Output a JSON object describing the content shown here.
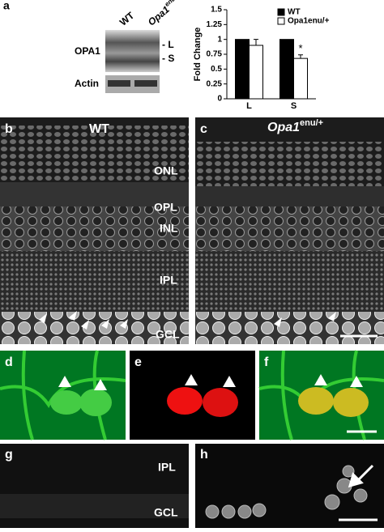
{
  "panels": {
    "a": "a",
    "b": "b",
    "c": "c",
    "d": "d",
    "e": "e",
    "f": "f",
    "g": "g",
    "h": "h"
  },
  "blot": {
    "wt": "WT",
    "mut": {
      "base": "Opa1",
      "sup": "enu/+"
    },
    "opa1": "OPA1",
    "actin": "Actin",
    "long": "- L",
    "short": "- S"
  },
  "retina": {
    "wt": "WT",
    "mut": {
      "base": "Opa1",
      "sup": "enu/+"
    },
    "layers": [
      "ONL",
      "OPL",
      "INL",
      "IPL",
      "GCL"
    ],
    "lower_layers": [
      "IPL",
      "GCL"
    ]
  },
  "chart_data": {
    "type": "bar",
    "ylabel": "Fold Change",
    "categories": [
      "L",
      "S"
    ],
    "series": [
      {
        "name": "WT",
        "color": "#000000",
        "values": [
          1,
          1
        ],
        "errors": [
          0,
          0
        ]
      },
      {
        "name": "Opa1enu/+",
        "color": "#ffffff",
        "values": [
          0.9,
          0.68
        ],
        "errors": [
          0.1,
          0.06
        ]
      }
    ],
    "ylim": [
      0,
      1.5
    ],
    "yticks": [
      0,
      0.25,
      0.5,
      0.75,
      1,
      1.25,
      1.5
    ],
    "annotation": "*"
  }
}
